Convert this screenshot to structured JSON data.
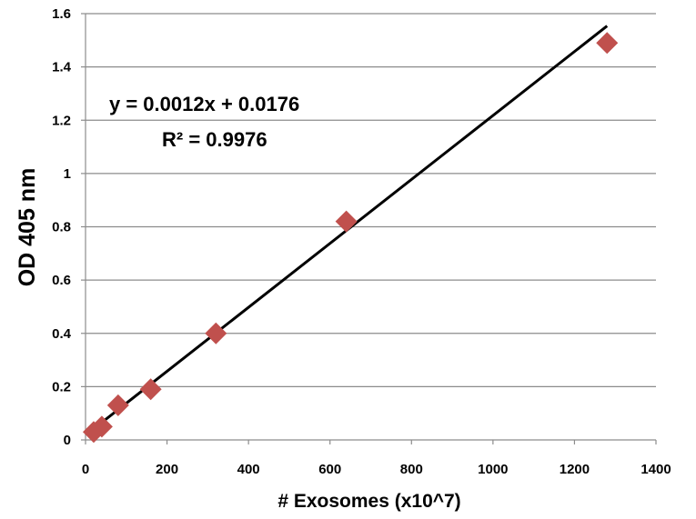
{
  "chart_data": {
    "type": "scatter",
    "title": "",
    "xlabel": "# Exosomes (x10^7)",
    "ylabel": "OD 405 nm",
    "xlim": [
      0,
      1400
    ],
    "ylim": [
      0,
      1.6
    ],
    "x_ticks": [
      0,
      200,
      400,
      600,
      800,
      1000,
      1200,
      1400
    ],
    "y_ticks": [
      0,
      0.2,
      0.4,
      0.6,
      0.8,
      1,
      1.2,
      1.4,
      1.6
    ],
    "x_tick_labels": [
      "0",
      "200",
      "400",
      "600",
      "800",
      "1000",
      "1200",
      "1400"
    ],
    "y_tick_labels": [
      "0",
      "0.2",
      "0.4",
      "0.6",
      "0.8",
      "1",
      "1.2",
      "1.4",
      "1.6"
    ],
    "grid": "horizontal",
    "series": [
      {
        "marker": "diamond",
        "color": "#C0504D",
        "points": [
          {
            "x": 20,
            "y": 0.03
          },
          {
            "x": 40,
            "y": 0.05
          },
          {
            "x": 80,
            "y": 0.13
          },
          {
            "x": 160,
            "y": 0.19
          },
          {
            "x": 320,
            "y": 0.4
          },
          {
            "x": 640,
            "y": 0.82
          },
          {
            "x": 1280,
            "y": 1.49
          }
        ]
      }
    ],
    "trendline": {
      "type": "linear",
      "slope": 0.0012,
      "intercept": 0.0176,
      "x_range": [
        20,
        1280
      ],
      "color": "#000000",
      "equation_label": "y = 0.0012x + 0.0176",
      "r2_label": "R² = 0.9976"
    }
  }
}
